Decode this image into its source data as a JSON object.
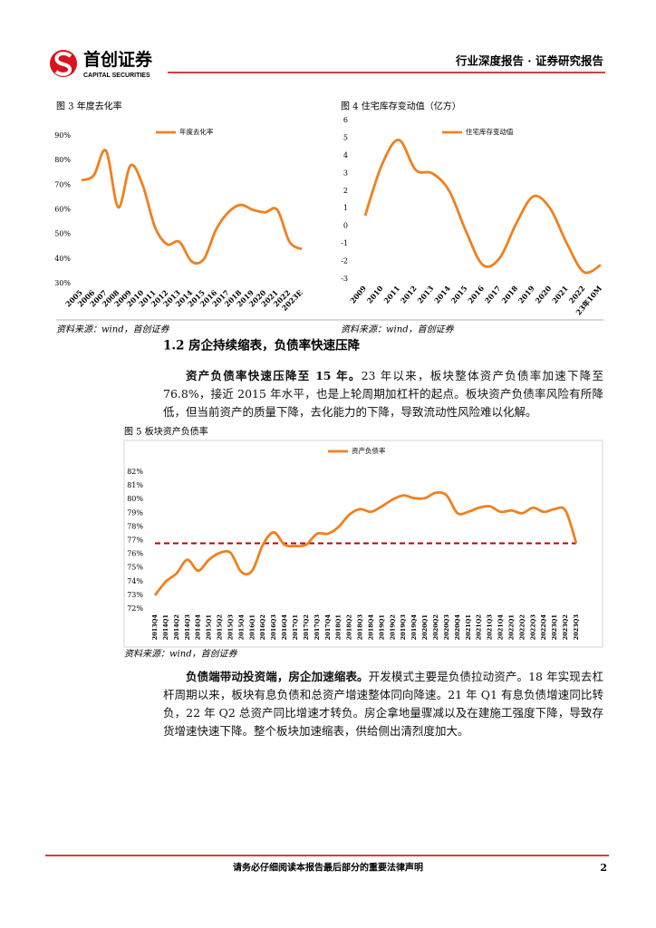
{
  "header": {
    "brand": "首创证券",
    "brand_en": "CAPITAL SECURITIES",
    "report_type": "行业深度报告 · 证券研究报告"
  },
  "chart_data": [
    {
      "type": "line",
      "title": "图 3 年度去化率",
      "source": "资料来源：wind，首创证券",
      "categories": [
        "2005",
        "2006",
        "2007",
        "2008",
        "2009",
        "2010",
        "2011",
        "2012",
        "2013",
        "2014",
        "2015",
        "2016",
        "2017",
        "2018",
        "2019",
        "2020",
        "2021",
        "2022",
        "2023E"
      ],
      "series": [
        {
          "name": "年度去化率",
          "color": "#f0801f",
          "values": [
            72,
            74,
            84,
            61,
            78,
            70,
            53,
            46,
            47,
            39,
            40,
            52,
            59,
            62,
            60,
            59,
            60,
            47,
            44
          ]
        }
      ],
      "ylim": [
        30,
        90
      ],
      "yticks": [
        {
          "value": 30,
          "label": "30%"
        },
        {
          "value": 40,
          "label": "40%"
        },
        {
          "value": 50,
          "label": "50%"
        },
        {
          "value": 60,
          "label": "60%"
        },
        {
          "value": 70,
          "label": "70%"
        },
        {
          "value": 80,
          "label": "80%"
        },
        {
          "value": 90,
          "label": "90%"
        }
      ],
      "legend": "top"
    },
    {
      "type": "line",
      "title": "图 4 住宅库存变动值（亿方）",
      "source": "资料来源：wind，首创证券",
      "categories": [
        "2009",
        "2010",
        "2011",
        "2012",
        "2013",
        "2014",
        "2015",
        "2016",
        "2017",
        "2018",
        "2019",
        "2020",
        "2021",
        "2022",
        "23年10M"
      ],
      "series": [
        {
          "name": "住宅库存变动值",
          "color": "#f0801f",
          "values": [
            0.6,
            3.5,
            4.9,
            3.2,
            3.0,
            2.0,
            -0.3,
            -2.2,
            -1.8,
            0.2,
            1.7,
            1.0,
            -1.0,
            -2.6,
            -2.2
          ]
        }
      ],
      "ylim": [
        -3,
        6
      ],
      "yticks": [
        -3,
        -2,
        -1,
        0,
        1,
        2,
        3,
        4,
        5,
        6
      ],
      "legend": "top"
    },
    {
      "type": "line",
      "title": "图 5 板块资产负债率",
      "source": "资料来源：wind，首创证券",
      "categories": [
        "2013Q4",
        "2014Q1",
        "2014Q2",
        "2014Q3",
        "2014Q4",
        "2015Q1",
        "2015Q2",
        "2015Q3",
        "2015Q4",
        "2016Q1",
        "2016Q2",
        "2016Q3",
        "2016Q4",
        "2017Q1",
        "2017Q2",
        "2017Q3",
        "2017Q4",
        "2018Q1",
        "2018Q2",
        "2018Q3",
        "2018Q4",
        "2019Q1",
        "2019Q2",
        "2019Q3",
        "2019Q4",
        "2020Q1",
        "2020Q2",
        "2020Q3",
        "2020Q4",
        "2021Q1",
        "2021Q2",
        "2021Q3",
        "2021Q4",
        "2022Q1",
        "2022Q2",
        "2022Q3",
        "2022Q4",
        "2023Q1",
        "2023Q2",
        "2023Q3"
      ],
      "series": [
        {
          "name": "资产负债率",
          "color": "#f0801f",
          "values": [
            73.0,
            74.0,
            74.6,
            75.6,
            74.8,
            75.6,
            76.1,
            76.1,
            74.7,
            74.8,
            76.7,
            77.6,
            76.7,
            76.6,
            76.7,
            77.5,
            77.5,
            78.0,
            78.9,
            79.3,
            79.1,
            79.5,
            80.0,
            80.3,
            80.1,
            80.1,
            80.5,
            80.3,
            79.0,
            79.1,
            79.4,
            79.5,
            79.1,
            79.2,
            79.0,
            79.4,
            79.1,
            79.3,
            79.2,
            76.8
          ]
        }
      ],
      "reference_line": 76.8,
      "reference_color": "#c00000",
      "ylim": [
        72,
        82
      ],
      "yticks": [
        {
          "value": 72,
          "label": "72%"
        },
        {
          "value": 73,
          "label": "73%"
        },
        {
          "value": 74,
          "label": "74%"
        },
        {
          "value": 75,
          "label": "75%"
        },
        {
          "value": 76,
          "label": "76%"
        },
        {
          "value": 77,
          "label": "77%"
        },
        {
          "value": 78,
          "label": "78%"
        },
        {
          "value": 79,
          "label": "79%"
        },
        {
          "value": 80,
          "label": "80%"
        },
        {
          "value": 81,
          "label": "81%"
        },
        {
          "value": 82,
          "label": "82%"
        }
      ],
      "legend": "top"
    }
  ],
  "section": {
    "heading": "1.2 房企持续缩表，负债率快速压降"
  },
  "paragraphs": [
    {
      "lead": "资产负债率快速压降至 15 年。",
      "text": "23 年以来，板块整体资产负债率加速下降至 76.8%，接近 2015 年水平，也是上轮周期加杠杆的起点。板块资产负债率风险有所降低，但当前资产的质量下降，去化能力的下降，导致流动性风险难以化解。"
    },
    {
      "lead": "负债端带动投资端，房企加速缩表。",
      "text": "开发模式主要是负债拉动资产。18 年实现去杠杆周期以来，板块有息负债和总资产增速整体同向降速。21 年 Q1 有息负债增速同比转负，22 年 Q2 总资产同比增速才转负。房企拿地量骤减以及在建施工强度下降，导致存货增速快速下降。整个板块加速缩表，供给侧出清烈度加大。"
    }
  ],
  "footer": {
    "disclaimer": "请务必仔细阅读本报告最后部分的重要法律声明",
    "page": 2
  }
}
